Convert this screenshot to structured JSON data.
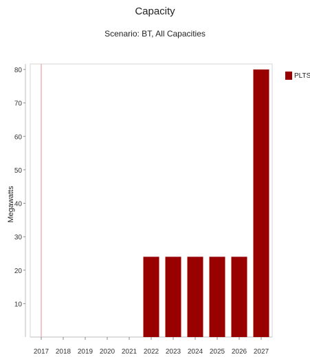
{
  "chart_data": {
    "type": "bar",
    "title": "Capacity",
    "subtitle": "Scenario: BT, All Capacities",
    "xlabel": "",
    "ylabel": "Megawatts",
    "categories": [
      "2017",
      "2018",
      "2019",
      "2020",
      "2021",
      "2022",
      "2023",
      "2024",
      "2025",
      "2026",
      "2027"
    ],
    "series": [
      {
        "name": "PLTSa",
        "values": [
          0,
          0,
          0,
          0,
          0,
          24,
          24,
          24,
          24,
          24,
          80
        ],
        "color": "#990000"
      }
    ],
    "ylim": [
      0,
      80
    ],
    "yticks": [
      10,
      20,
      30,
      40,
      50,
      60,
      70,
      80
    ],
    "grid": false,
    "legend": "right",
    "marker_line": {
      "category": "2017",
      "color": "#f0a0a0"
    }
  }
}
